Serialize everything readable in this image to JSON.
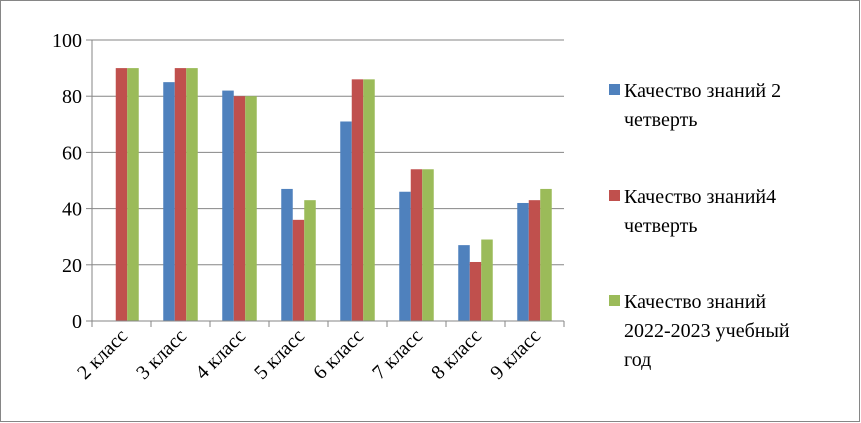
{
  "chart_data": {
    "type": "bar",
    "title": "",
    "xlabel": "",
    "ylabel": "",
    "ylim": [
      0,
      100
    ],
    "yticks": [
      0,
      20,
      40,
      60,
      80,
      100
    ],
    "grid": true,
    "legend_position": "right",
    "categories": [
      "2 класс",
      "3 класс",
      "4 класс",
      "5 класс",
      "6 класс",
      "7 класс",
      "8 класс",
      "9 класс"
    ],
    "series": [
      {
        "name": "Качество знаний 2 четверть",
        "legend_lines": [
          "Качество знаний 2",
          "четверть"
        ],
        "color": "#4F81BD",
        "values": [
          0,
          85,
          82,
          47,
          71,
          46,
          27,
          42
        ]
      },
      {
        "name": "Качество знаний4 четверть",
        "legend_lines": [
          "Качество знаний4",
          "четверть"
        ],
        "color": "#C0504D",
        "values": [
          90,
          90,
          80,
          36,
          86,
          54,
          21,
          43
        ]
      },
      {
        "name": "Качество знаний 2022-2023 учебный год",
        "legend_lines": [
          "Качество знаний",
          "2022-2023 учебный",
          "год"
        ],
        "color": "#9BBB59",
        "values": [
          90,
          90,
          80,
          43,
          86,
          54,
          29,
          47
        ]
      }
    ]
  }
}
